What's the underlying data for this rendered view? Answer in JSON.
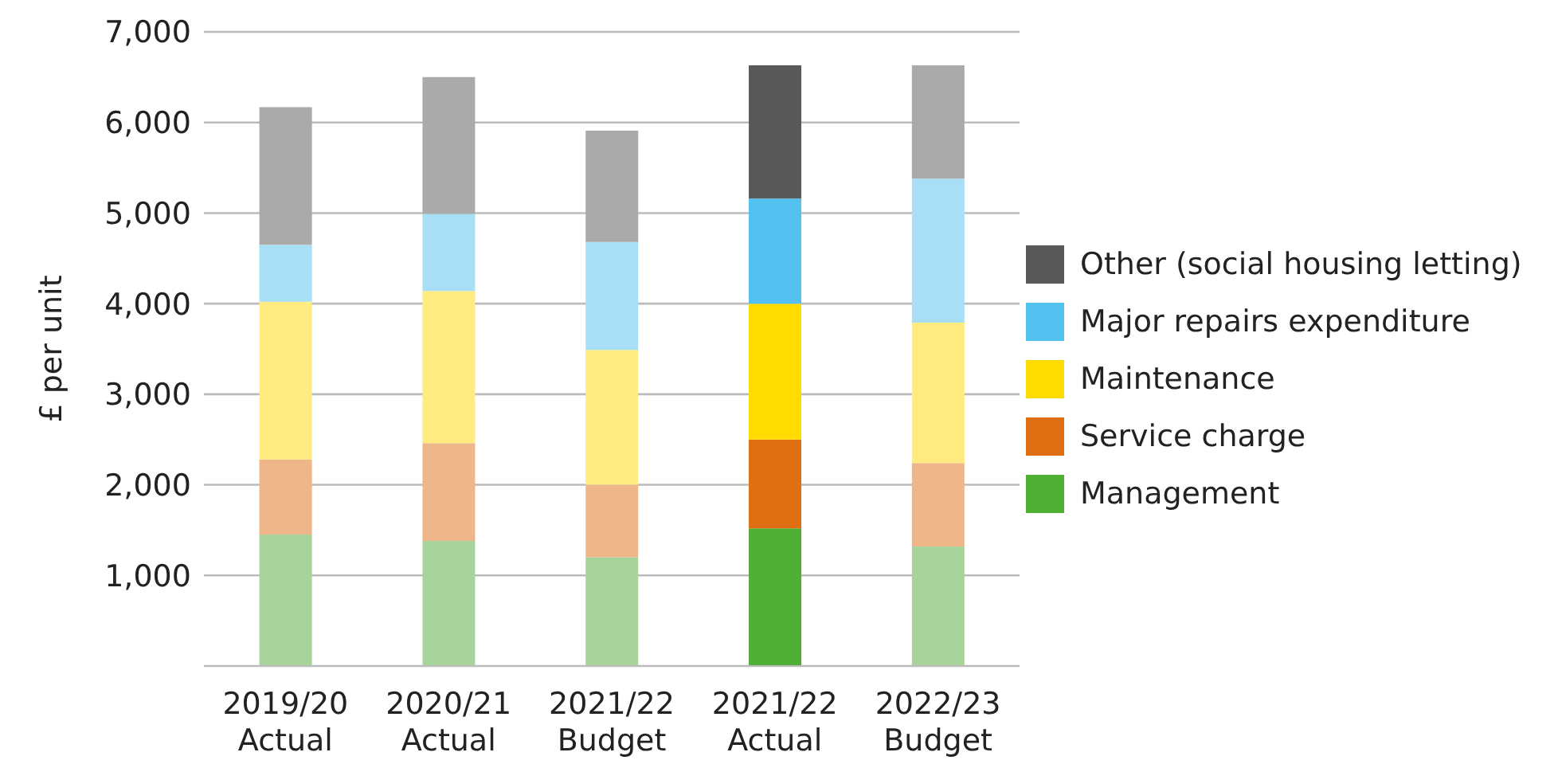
{
  "chart_data": {
    "type": "bar",
    "stacked": true,
    "ylabel": "£ per unit",
    "categories": [
      "2019/20\nActual",
      "2020/21\nActual",
      "2021/22\nBudget",
      "2021/22\nActual",
      "2022/23\nBudget"
    ],
    "series": [
      {
        "name": "Management",
        "color": "#4fae34",
        "colors": [
          "#a6d49a",
          "#a6d49a",
          "#a6d49a",
          "#4fae34",
          "#a6d49a"
        ],
        "values": [
          1450,
          1380,
          1200,
          1520,
          1320
        ]
      },
      {
        "name": "Service charge",
        "color": "#e06e12",
        "colors": [
          "#eeb689",
          "#eeb689",
          "#eeb689",
          "#e06e12",
          "#eeb689"
        ],
        "values": [
          830,
          1080,
          800,
          980,
          920
        ]
      },
      {
        "name": "Maintenance",
        "color": "#ffdb00",
        "colors": [
          "#ffeb80",
          "#ffeb80",
          "#ffeb80",
          "#ffdb00",
          "#ffeb80"
        ],
        "values": [
          1740,
          1680,
          1490,
          1500,
          1550
        ]
      },
      {
        "name": "Major repairs expenditure",
        "color": "#52c1ef",
        "colors": [
          "#a8dff7",
          "#a8dff7",
          "#a8dff7",
          "#52c1ef",
          "#a8dff7"
        ],
        "values": [
          630,
          850,
          1190,
          1160,
          1590
        ]
      },
      {
        "name": "Other (social housing letting)",
        "color": "#595957",
        "colors": [
          "#aaaaa8",
          "#aaaaa8",
          "#aaaaa8",
          "#595957",
          "#aaaaa8"
        ],
        "values": [
          1520,
          1510,
          1230,
          1470,
          1250
        ]
      }
    ],
    "ylim": [
      0,
      7000
    ],
    "yticks": [
      {
        "value": 1000,
        "label": "1,000"
      },
      {
        "value": 2000,
        "label": "2,000"
      },
      {
        "value": 3000,
        "label": "3,000"
      },
      {
        "value": 4000,
        "label": "4,000"
      },
      {
        "value": 5000,
        "label": "5,000"
      },
      {
        "value": 6000,
        "label": "6,000"
      },
      {
        "value": 7000,
        "label": "7,000"
      }
    ],
    "grid": "y",
    "legend": "right"
  }
}
